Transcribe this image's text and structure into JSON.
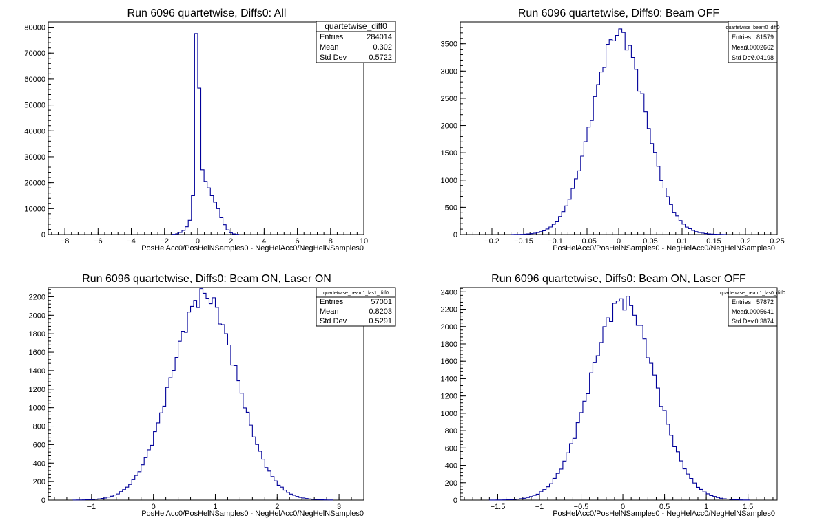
{
  "chart_data": [
    {
      "type": "histogram",
      "title": "Run 6096 quartetwise, Diffs0: All",
      "xlabel": "PosHelAcc0/PosHelNSamples0 - NegHelAcc0/NegHelNSamples0",
      "ylabel": "",
      "xlim": [
        -9,
        10
      ],
      "ylim": [
        0,
        82000
      ],
      "x_ticks": [
        -8,
        -6,
        -4,
        -2,
        0,
        2,
        4,
        6,
        8,
        10
      ],
      "y_ticks": [
        0,
        10000,
        20000,
        30000,
        40000,
        50000,
        60000,
        70000,
        80000
      ],
      "stats": {
        "name": "quartetwise_diff0",
        "rows": [
          {
            "label": "Entries",
            "value": "284014"
          },
          {
            "label": "Mean",
            "value": "0.302"
          },
          {
            "label": "Std Dev",
            "value": "0.5722"
          }
        ]
      },
      "bin_width": 0.19,
      "bins": [
        {
          "x": -1.52,
          "y": 100
        },
        {
          "x": -1.33,
          "y": 300
        },
        {
          "x": -1.14,
          "y": 800
        },
        {
          "x": -0.95,
          "y": 1600
        },
        {
          "x": -0.76,
          "y": 3000
        },
        {
          "x": -0.57,
          "y": 5500
        },
        {
          "x": -0.38,
          "y": 15000
        },
        {
          "x": -0.19,
          "y": 77500
        },
        {
          "x": 0.0,
          "y": 56500
        },
        {
          "x": 0.19,
          "y": 25000
        },
        {
          "x": 0.38,
          "y": 20500
        },
        {
          "x": 0.57,
          "y": 18000
        },
        {
          "x": 0.76,
          "y": 15000
        },
        {
          "x": 0.95,
          "y": 12500
        },
        {
          "x": 1.14,
          "y": 10000
        },
        {
          "x": 1.33,
          "y": 6500
        },
        {
          "x": 1.52,
          "y": 3800
        },
        {
          "x": 1.71,
          "y": 1800
        },
        {
          "x": 1.9,
          "y": 700
        },
        {
          "x": 2.09,
          "y": 250
        },
        {
          "x": 2.28,
          "y": 80
        }
      ]
    },
    {
      "type": "histogram",
      "title": "Run 6096 quartetwise, Diffs0: Beam OFF",
      "xlabel": "PosHelAcc0/PosHelNSamples0 - NegHelAcc0/NegHelNSamples0",
      "ylabel": "",
      "xlim": [
        -0.25,
        0.25
      ],
      "ylim": [
        0,
        3900
      ],
      "x_ticks": [
        -0.2,
        -0.15,
        -0.1,
        -0.05,
        0,
        0.05,
        0.1,
        0.15,
        0.2,
        0.25
      ],
      "y_ticks": [
        0,
        500,
        1000,
        1500,
        2000,
        2500,
        3000,
        3500
      ],
      "stats": {
        "name": "quartetwise_beam0_diff0",
        "rows": [
          {
            "label": "Entries",
            "value": "81579"
          },
          {
            "label": "Mean",
            "value": "0.0002662"
          },
          {
            "label": "Std Dev",
            "value": "0.04198"
          }
        ]
      },
      "gauss": {
        "mean": 0.0003,
        "sigma": 0.042,
        "peak": 3700,
        "xmin": -0.17,
        "xmax": 0.17,
        "bin_width": 0.005
      }
    },
    {
      "type": "histogram",
      "title": "Run 6096 quartetwise, Diffs0: Beam ON, Laser ON",
      "xlabel": "PosHelAcc0/PosHelNSamples0 - NegHelAcc0/NegHelNSamples0",
      "ylabel": "",
      "xlim": [
        -1.7,
        3.4
      ],
      "ylim": [
        0,
        2300
      ],
      "x_ticks": [
        -1,
        0,
        1,
        2,
        3
      ],
      "y_ticks": [
        0,
        200,
        400,
        600,
        800,
        1000,
        1200,
        1400,
        1600,
        1800,
        2000,
        2200
      ],
      "stats": {
        "name": "quartetwise_beam1_las1_diff0",
        "rows": [
          {
            "label": "Entries",
            "value": "57001"
          },
          {
            "label": "Mean",
            "value": "0.8203"
          },
          {
            "label": "Std Dev",
            "value": "0.5291"
          }
        ]
      },
      "gauss": {
        "mean": 0.82,
        "sigma": 0.53,
        "peak": 2220,
        "xmin": -1.3,
        "xmax": 2.9,
        "bin_width": 0.05
      }
    },
    {
      "type": "histogram",
      "title": "Run 6096 quartetwise, Diffs0: Beam ON, Laser OFF",
      "xlabel": "PosHelAcc0/PosHelNSamples0 - NegHelAcc0/NegHelNSamples0",
      "ylabel": "",
      "xlim": [
        -1.95,
        1.85
      ],
      "ylim": [
        0,
        2450
      ],
      "x_ticks": [
        -1.5,
        -1,
        -0.5,
        0,
        0.5,
        1,
        1.5
      ],
      "y_ticks": [
        0,
        200,
        400,
        600,
        800,
        1000,
        1200,
        1400,
        1600,
        1800,
        2000,
        2200,
        2400
      ],
      "stats": {
        "name": "quartetwise_beam1_las0_diff0",
        "rows": [
          {
            "label": "Entries",
            "value": "57872"
          },
          {
            "label": "Mean",
            "value": "−0.0005641"
          },
          {
            "label": "Std Dev",
            "value": "0.3874"
          }
        ]
      },
      "gauss": {
        "mean": 0.0,
        "sigma": 0.387,
        "peak": 2300,
        "xmin": -1.6,
        "xmax": 1.5,
        "bin_width": 0.04
      }
    }
  ]
}
